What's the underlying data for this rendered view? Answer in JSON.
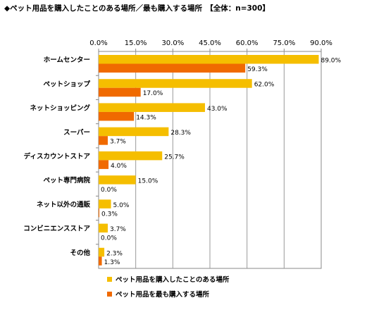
{
  "title": "◆ペット用品を購入したことのある場所／最も購入する場所　【全体：n=300】",
  "chart_data": {
    "type": "bar",
    "orientation": "horizontal",
    "categories": [
      "ホームセンター",
      "ペットショップ",
      "ネットショッピング",
      "スーパー",
      "ディスカウントストア",
      "ペット専門病院",
      "ネット以外の通販",
      "コンビニエンスストア",
      "その他"
    ],
    "series": [
      {
        "name": "ペット用品を購入したことのある場所",
        "color": "#F5BE00",
        "values": [
          89.0,
          62.0,
          43.0,
          28.3,
          25.7,
          15.0,
          5.0,
          3.7,
          2.3
        ]
      },
      {
        "name": "ペット用品を最も購入する場所",
        "color": "#F06A00",
        "values": [
          59.3,
          17.0,
          14.3,
          3.7,
          4.0,
          0.0,
          0.3,
          0.0,
          1.3
        ]
      }
    ],
    "x_ticks": [
      "0.0%",
      "15.0%",
      "30.0%",
      "45.0%",
      "60.0%",
      "75.0%",
      "90.0%"
    ],
    "xlim": [
      0,
      90
    ],
    "value_suffix": "%",
    "grid": true,
    "legend_position": "bottom-left"
  }
}
